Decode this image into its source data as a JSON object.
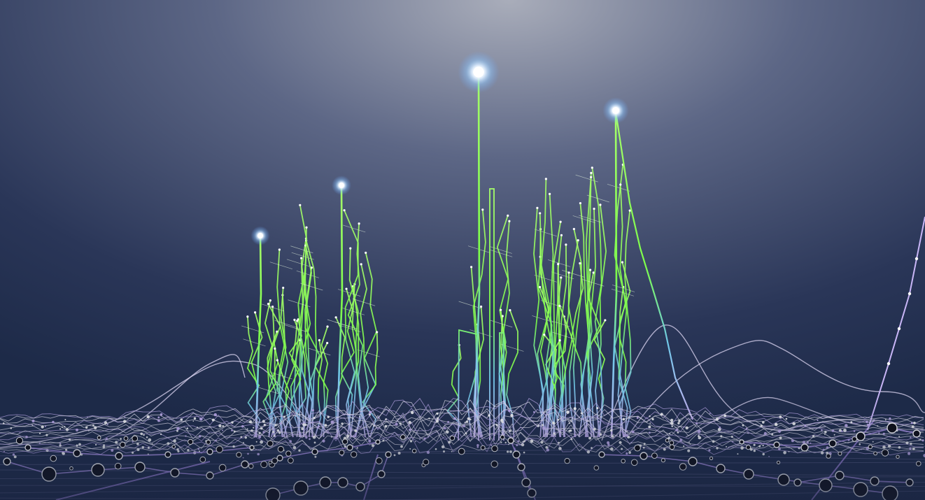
{
  "scene": {
    "description_free": true,
    "palette": {
      "sky_top_glow": "#a9adba",
      "sky_mid": "#4a5578",
      "sky_bottom": "#1d2a48",
      "peak_green": "#7dff4a",
      "mid_cyan": "#6fc7e8",
      "base_violet": "#b99cf2",
      "mesh_white": "#e9e6f5",
      "node_dark": "#0b0b12",
      "glow_core": "#ffffff",
      "glow_halo": "#9fd0ff"
    },
    "spikes": [
      {
        "id": "spike-far-left",
        "height": 0.57
      },
      {
        "id": "spike-left",
        "height": 0.66
      },
      {
        "id": "spike-center",
        "height": 0.88
      },
      {
        "id": "spike-right",
        "height": 0.81
      }
    ]
  }
}
